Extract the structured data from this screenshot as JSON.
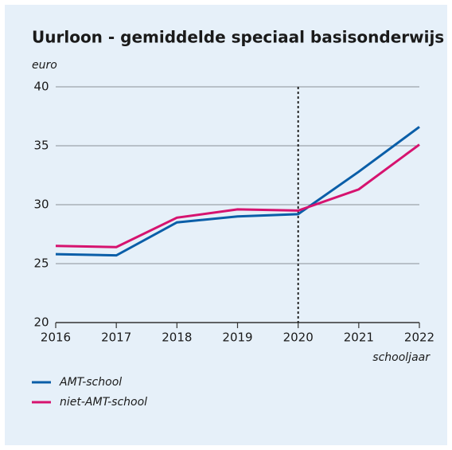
{
  "chart_data": {
    "type": "line",
    "title": "Uurloon - gemiddelde speciaal basisonderwijs",
    "y_label": "euro",
    "x_label": "schooljaar",
    "x": [
      2016,
      2017,
      2018,
      2019,
      2020,
      2021,
      2022
    ],
    "series": [
      {
        "name": "AMT-school",
        "color": "#0a5ea8",
        "values": [
          25.8,
          25.7,
          28.5,
          29.0,
          29.2,
          32.8,
          36.6
        ]
      },
      {
        "name": "niet-AMT-school",
        "color": "#d6136f",
        "values": [
          26.5,
          26.4,
          28.9,
          29.6,
          29.5,
          31.3,
          35.1
        ]
      }
    ],
    "xlim": [
      2016,
      2022
    ],
    "xticks": [
      2016,
      2017,
      2018,
      2019,
      2020,
      2021,
      2022
    ],
    "ylim": [
      20,
      40
    ],
    "yticks": [
      20,
      25,
      30,
      35,
      40
    ],
    "grid": true,
    "vline_x": 2020,
    "legend": "bottom-left"
  }
}
